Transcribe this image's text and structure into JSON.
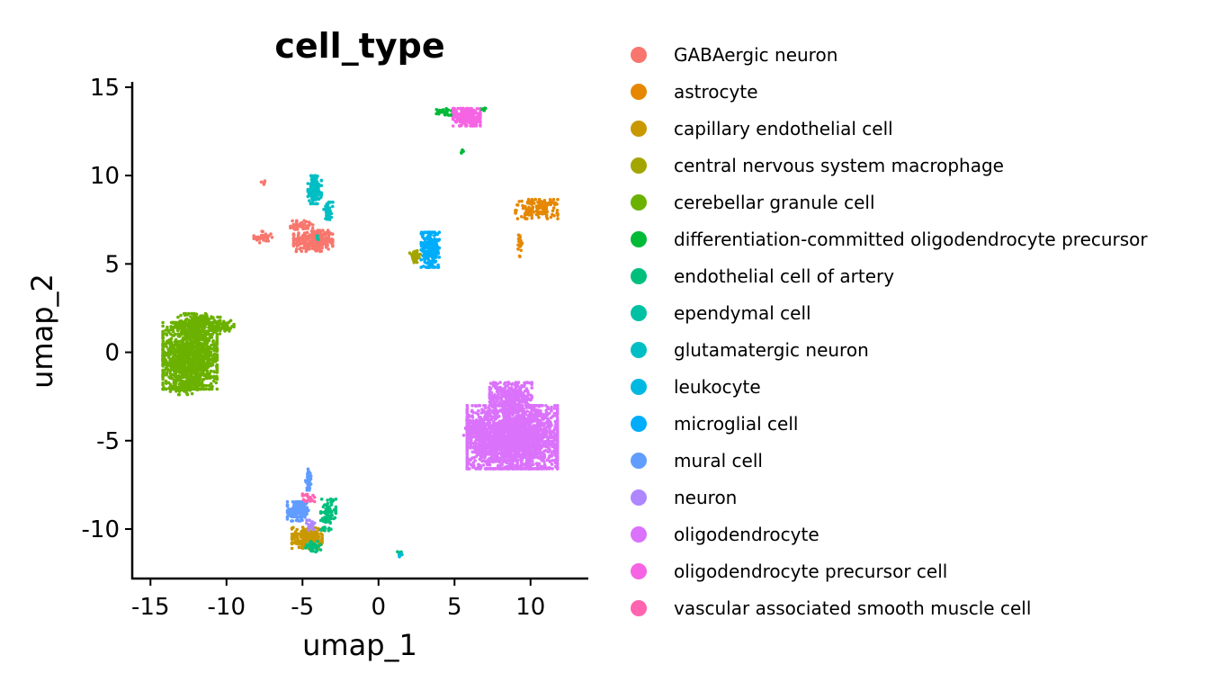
{
  "chart_data": {
    "type": "scatter",
    "title": "cell_type",
    "xlabel": "umap_1",
    "ylabel": "umap_2",
    "xlim": [
      -16.2,
      13.8
    ],
    "ylim": [
      -12.8,
      15.3
    ],
    "x_ticks": [
      -15,
      -10,
      -5,
      0,
      5,
      10
    ],
    "x_tick_labels": [
      "-15",
      "-10",
      "-5",
      "0",
      "5",
      "10"
    ],
    "y_ticks": [
      -10,
      -5,
      0,
      5,
      10,
      15
    ],
    "y_tick_labels": [
      "-10",
      "-5",
      "0",
      "5",
      "10",
      "15"
    ],
    "grid": false,
    "legend_position": "right",
    "series": [
      {
        "name": "GABAergic neuron",
        "color": "#F8766D",
        "clusters": [
          {
            "cx": -4.3,
            "cy": 6.3,
            "rx": 1.3,
            "ry": 0.6,
            "n": 260
          },
          {
            "cx": -7.6,
            "cy": 6.5,
            "rx": 0.6,
            "ry": 0.35,
            "n": 40
          },
          {
            "cx": -5.0,
            "cy": 7.2,
            "rx": 0.8,
            "ry": 0.25,
            "n": 45
          },
          {
            "cx": -7.6,
            "cy": 9.6,
            "rx": 0.12,
            "ry": 0.1,
            "n": 5
          }
        ]
      },
      {
        "name": "astrocyte",
        "color": "#E58700",
        "clusters": [
          {
            "cx": 10.4,
            "cy": 8.1,
            "rx": 1.4,
            "ry": 0.55,
            "n": 140
          },
          {
            "cx": 9.3,
            "cy": 6.1,
            "rx": 0.15,
            "ry": 0.7,
            "n": 22
          }
        ]
      },
      {
        "name": "capillary endothelial cell",
        "color": "#C99800",
        "clusters": [
          {
            "cx": -4.7,
            "cy": -10.5,
            "rx": 1.0,
            "ry": 0.6,
            "n": 180
          }
        ]
      },
      {
        "name": "central nervous system macrophage",
        "color": "#A3A500",
        "clusters": [
          {
            "cx": 2.4,
            "cy": 5.4,
            "rx": 0.35,
            "ry": 0.35,
            "n": 35
          }
        ]
      },
      {
        "name": "cerebellar granule cell",
        "color": "#6BB100",
        "clusters": [
          {
            "cx": -12.4,
            "cy": -0.2,
            "rx": 1.8,
            "ry": 1.9,
            "n": 1300
          },
          {
            "cx": -11.8,
            "cy": 1.6,
            "rx": 1.4,
            "ry": 0.6,
            "n": 220
          },
          {
            "cx": -10.3,
            "cy": 1.5,
            "rx": 0.8,
            "ry": 0.3,
            "n": 60
          },
          {
            "cx": -12.8,
            "cy": -1.9,
            "rx": 0.9,
            "ry": 0.5,
            "n": 100
          }
        ]
      },
      {
        "name": "differentiation-committed oligodendrocyte precursor",
        "color": "#00BA38",
        "clusters": [
          {
            "cx": 4.3,
            "cy": 13.6,
            "rx": 0.5,
            "ry": 0.2,
            "n": 30
          },
          {
            "cx": 5.5,
            "cy": 11.3,
            "rx": 0.12,
            "ry": 0.15,
            "n": 6
          },
          {
            "cx": 6.9,
            "cy": 13.8,
            "rx": 0.25,
            "ry": 0.12,
            "n": 8
          }
        ]
      },
      {
        "name": "endothelial cell of artery",
        "color": "#00BF7D",
        "clusters": [
          {
            "cx": -3.3,
            "cy": -9.2,
            "rx": 0.5,
            "ry": 0.9,
            "n": 90
          },
          {
            "cx": -4.3,
            "cy": -11.0,
            "rx": 0.5,
            "ry": 0.3,
            "n": 35
          },
          {
            "cx": 1.4,
            "cy": -11.4,
            "rx": 0.15,
            "ry": 0.12,
            "n": 8
          }
        ]
      },
      {
        "name": "ependymal cell",
        "color": "#00C1A3",
        "clusters": [
          {
            "cx": -4.0,
            "cy": 6.5,
            "rx": 0.12,
            "ry": 0.12,
            "n": 4
          }
        ]
      },
      {
        "name": "glutamatergic neuron",
        "color": "#00BFC4",
        "clusters": [
          {
            "cx": -4.2,
            "cy": 9.2,
            "rx": 0.45,
            "ry": 0.8,
            "n": 140
          },
          {
            "cx": -3.3,
            "cy": 8.0,
            "rx": 0.3,
            "ry": 0.5,
            "n": 40
          }
        ]
      },
      {
        "name": "leukocyte",
        "color": "#00B9E3",
        "clusters": [
          {
            "cx": 1.4,
            "cy": -11.5,
            "rx": 0.1,
            "ry": 0.1,
            "n": 4
          }
        ]
      },
      {
        "name": "microglial cell",
        "color": "#00ADFA",
        "clusters": [
          {
            "cx": 3.4,
            "cy": 5.8,
            "rx": 0.6,
            "ry": 1.0,
            "n": 230
          }
        ]
      },
      {
        "name": "mural cell",
        "color": "#619CFF",
        "clusters": [
          {
            "cx": -5.3,
            "cy": -9.0,
            "rx": 0.7,
            "ry": 0.55,
            "n": 140
          },
          {
            "cx": -4.6,
            "cy": -7.2,
            "rx": 0.2,
            "ry": 0.6,
            "n": 40
          }
        ]
      },
      {
        "name": "neuron",
        "color": "#AE87FF",
        "clusters": [
          {
            "cx": -4.5,
            "cy": -9.8,
            "rx": 0.3,
            "ry": 0.3,
            "n": 20
          }
        ]
      },
      {
        "name": "oligodendrocyte",
        "color": "#DB72FB",
        "clusters": [
          {
            "cx": 8.8,
            "cy": -4.8,
            "rx": 3.0,
            "ry": 1.8,
            "n": 2500
          },
          {
            "cx": 8.7,
            "cy": -2.5,
            "rx": 1.4,
            "ry": 0.8,
            "n": 300
          },
          {
            "cx": 6.2,
            "cy": -4.2,
            "rx": 0.6,
            "ry": 0.5,
            "n": 60
          }
        ]
      },
      {
        "name": "oligodendrocyte precursor cell",
        "color": "#F564E3",
        "clusters": [
          {
            "cx": 5.8,
            "cy": 13.3,
            "rx": 0.9,
            "ry": 0.5,
            "n": 260
          }
        ]
      },
      {
        "name": "vascular associated smooth muscle cell",
        "color": "#FF64B0",
        "clusters": [
          {
            "cx": -4.6,
            "cy": -8.2,
            "rx": 0.4,
            "ry": 0.25,
            "n": 25
          }
        ]
      }
    ]
  }
}
